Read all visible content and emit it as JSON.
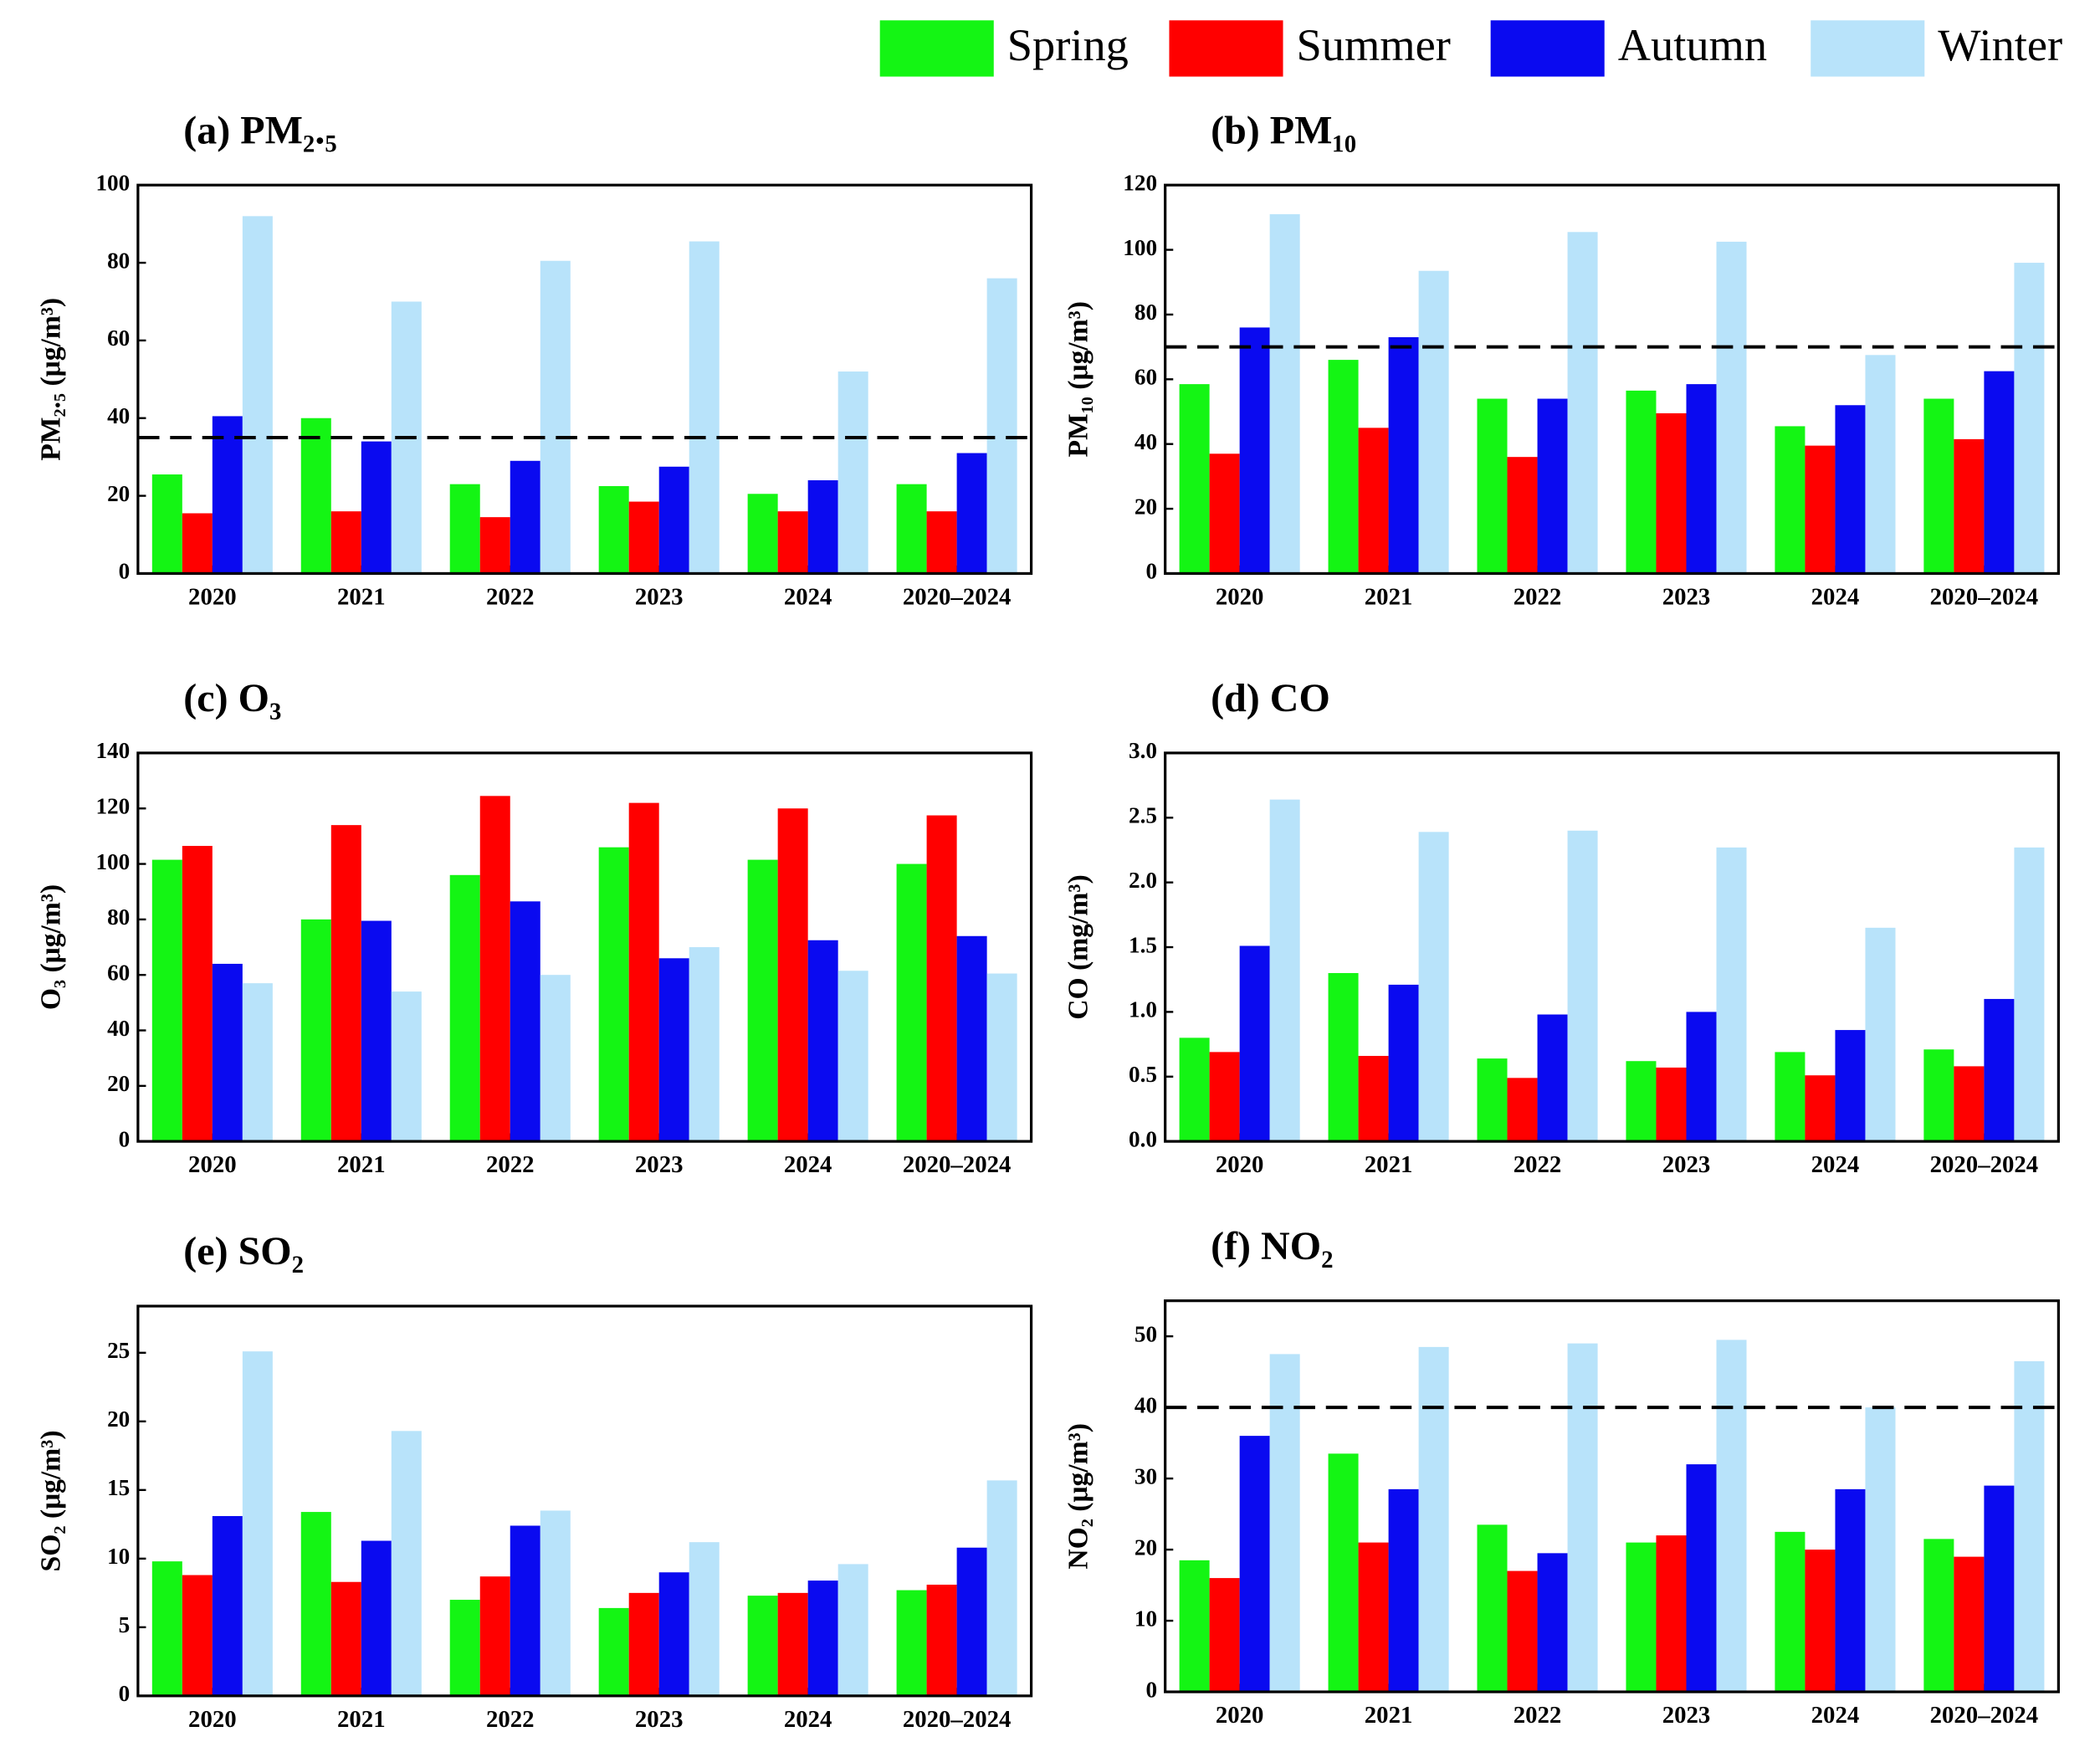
{
  "chart_data": [
    {
      "type": "bar",
      "title": "(a) PM₂.₅",
      "ylabel": "PM₂.₅ (μg/m³)",
      "categories": [
        "2020",
        "2021",
        "2022",
        "2023",
        "2024",
        "2020–2024"
      ],
      "ylim": [
        0,
        100
      ],
      "yticks": [
        0,
        20,
        40,
        60,
        80,
        100
      ],
      "reference_line": 35,
      "series": [
        {
          "name": "Spring",
          "color": "#14f514",
          "values": [
            25.5,
            40,
            23,
            22.5,
            20.5,
            23
          ]
        },
        {
          "name": "Summer",
          "color": "#ff0000",
          "values": [
            15.5,
            16,
            14.5,
            18.5,
            16,
            16
          ]
        },
        {
          "name": "Autumn",
          "color": "#0a0af0",
          "values": [
            40.5,
            34,
            29,
            27.5,
            24,
            31
          ]
        },
        {
          "name": "Winter",
          "color": "#b8e3fa",
          "values": [
            92,
            70,
            80.5,
            85.5,
            52,
            76
          ]
        }
      ]
    },
    {
      "type": "bar",
      "title": "(b) PM₁₀",
      "ylabel": "PM₁₀ (μg/m³)",
      "categories": [
        "2020",
        "2021",
        "2022",
        "2023",
        "2024",
        "2020–2024"
      ],
      "ylim": [
        0,
        120
      ],
      "yticks": [
        0,
        20,
        40,
        60,
        80,
        100,
        120
      ],
      "reference_line": 70,
      "series": [
        {
          "name": "Spring",
          "color": "#14f514",
          "values": [
            58.5,
            66,
            54,
            56.5,
            45.5,
            54
          ]
        },
        {
          "name": "Summer",
          "color": "#ff0000",
          "values": [
            37,
            45,
            36,
            49.5,
            39.5,
            41.5
          ]
        },
        {
          "name": "Autumn",
          "color": "#0a0af0",
          "values": [
            76,
            73,
            54,
            58.5,
            52,
            62.5
          ]
        },
        {
          "name": "Winter",
          "color": "#b8e3fa",
          "values": [
            111,
            93.5,
            105.5,
            102.5,
            67.5,
            96
          ]
        }
      ]
    },
    {
      "type": "bar",
      "title": "(c) O₃",
      "ylabel": "O₃ (μg/m³)",
      "categories": [
        "2020",
        "2021",
        "2022",
        "2023",
        "2024",
        "2020–2024"
      ],
      "ylim": [
        0,
        140
      ],
      "yticks": [
        0,
        20,
        40,
        60,
        80,
        100,
        120,
        140
      ],
      "series": [
        {
          "name": "Spring",
          "color": "#14f514",
          "values": [
            101.5,
            80,
            96,
            106,
            101.5,
            100
          ]
        },
        {
          "name": "Summer",
          "color": "#ff0000",
          "values": [
            106.5,
            114,
            124.5,
            122,
            120,
            117.5
          ]
        },
        {
          "name": "Autumn",
          "color": "#0a0af0",
          "values": [
            64,
            79.5,
            86.5,
            66,
            72.5,
            74
          ]
        },
        {
          "name": "Winter",
          "color": "#b8e3fa",
          "values": [
            57,
            54,
            60,
            70,
            61.5,
            60.5
          ]
        }
      ]
    },
    {
      "type": "bar",
      "title": "(d) CO",
      "ylabel": "CO (mg/m³)",
      "categories": [
        "2020",
        "2021",
        "2022",
        "2023",
        "2024",
        "2020–2024"
      ],
      "ylim": [
        0,
        3
      ],
      "yticks": [
        {
          "value": 0,
          "label": "0.0"
        },
        0.5,
        {
          "value": 1,
          "label": "1.0"
        },
        1.5,
        {
          "value": 2,
          "label": "2.0"
        },
        2.5,
        {
          "value": 3,
          "label": "3.0"
        }
      ],
      "series": [
        {
          "name": "Spring",
          "color": "#14f514",
          "values": [
            0.8,
            1.3,
            0.64,
            0.62,
            0.69,
            0.71
          ]
        },
        {
          "name": "Summer",
          "color": "#ff0000",
          "values": [
            0.69,
            0.66,
            0.49,
            0.57,
            0.51,
            0.58
          ]
        },
        {
          "name": "Autumn",
          "color": "#0a0af0",
          "values": [
            1.51,
            1.21,
            0.98,
            1.0,
            0.86,
            1.1
          ]
        },
        {
          "name": "Winter",
          "color": "#b8e3fa",
          "values": [
            2.64,
            2.39,
            2.4,
            2.27,
            1.65,
            2.27
          ]
        }
      ]
    },
    {
      "type": "bar",
      "title": "(e) SO₂",
      "ylabel": "SO₂ (μg/m³)",
      "categories": [
        "2020",
        "2021",
        "2022",
        "2023",
        "2024",
        "2020–2024"
      ],
      "ylim": [
        0,
        28.4
      ],
      "yticks": [
        0,
        5,
        10,
        15,
        20,
        25
      ],
      "series": [
        {
          "name": "Spring",
          "color": "#14f514",
          "values": [
            9.8,
            13.4,
            7.0,
            6.4,
            7.3,
            7.7
          ]
        },
        {
          "name": "Summer",
          "color": "#ff0000",
          "values": [
            8.8,
            8.3,
            8.7,
            7.5,
            7.5,
            8.1
          ]
        },
        {
          "name": "Autumn",
          "color": "#0a0af0",
          "values": [
            13.1,
            11.3,
            12.4,
            9.0,
            8.4,
            10.8
          ]
        },
        {
          "name": "Winter",
          "color": "#b8e3fa",
          "values": [
            25.1,
            19.3,
            13.5,
            11.2,
            9.6,
            15.7
          ]
        }
      ]
    },
    {
      "type": "bar",
      "title": "(f) NO₂",
      "ylabel": "NO₂ (μg/m³)",
      "categories": [
        "2020",
        "2021",
        "2022",
        "2023",
        "2024",
        "2020–2024"
      ],
      "ylim": [
        0,
        55
      ],
      "yticks": [
        0,
        10,
        20,
        30,
        40,
        50
      ],
      "reference_line": 40,
      "series": [
        {
          "name": "Spring",
          "color": "#14f514",
          "values": [
            18.5,
            33.5,
            23.5,
            21,
            22.5,
            21.5
          ]
        },
        {
          "name": "Summer",
          "color": "#ff0000",
          "values": [
            16,
            21,
            17,
            22,
            20,
            19
          ]
        },
        {
          "name": "Autumn",
          "color": "#0a0af0",
          "values": [
            36,
            28.5,
            19.5,
            32,
            28.5,
            29
          ]
        },
        {
          "name": "Winter",
          "color": "#b8e3fa",
          "values": [
            47.5,
            48.5,
            49,
            49.5,
            40,
            46.5
          ]
        }
      ]
    }
  ]
}
